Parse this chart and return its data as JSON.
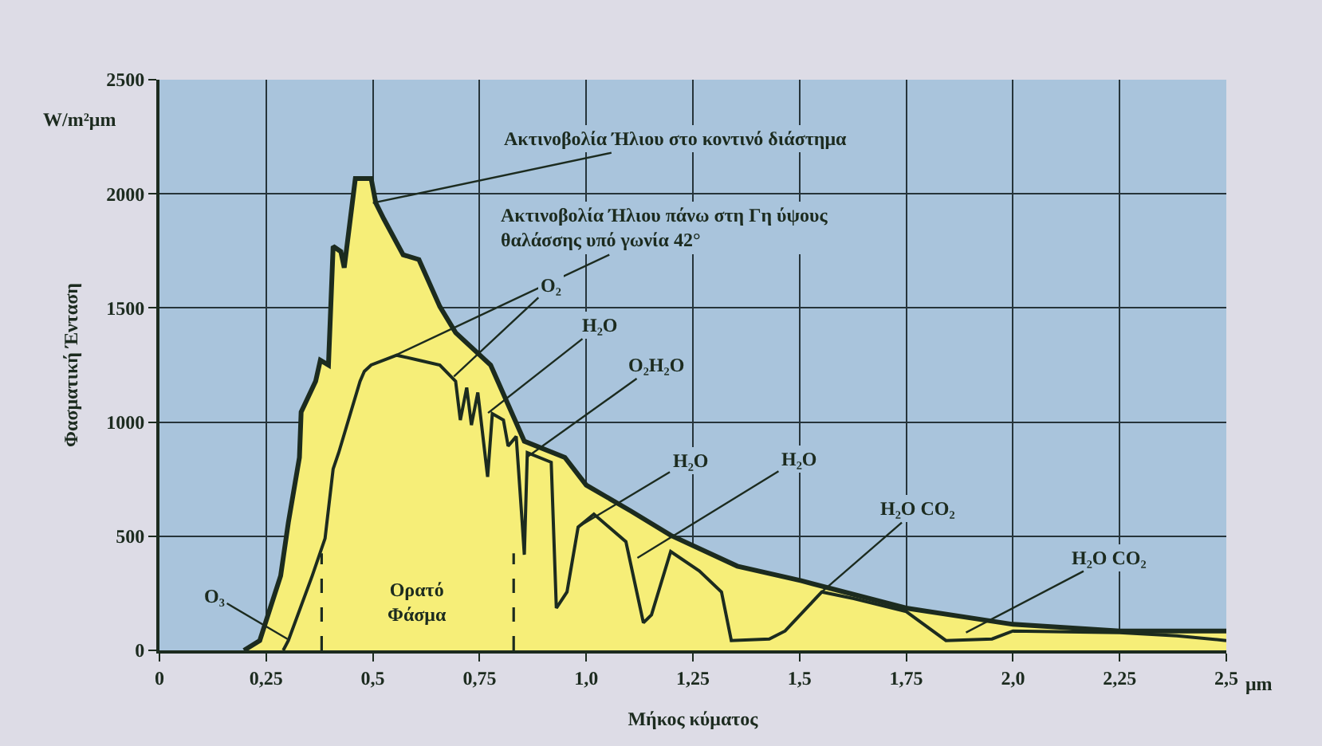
{
  "chart_data": {
    "type": "area",
    "xlabel": "Μήκος κύματος",
    "ylabel": "Φασματική Ένταση",
    "xlim": [
      0,
      2.5
    ],
    "ylim": [
      0,
      2500
    ],
    "xticks": [
      0,
      {
        "value": 0.25,
        "label": "0,25"
      },
      {
        "value": 0.5,
        "label": "0,5"
      },
      {
        "value": 0.75,
        "label": "0,75"
      },
      {
        "value": 1,
        "label": "1,0"
      },
      {
        "value": 1.25,
        "label": "1,25"
      },
      {
        "value": 1.5,
        "label": "1,5"
      },
      {
        "value": 1.75,
        "label": "1,75"
      },
      {
        "value": 2,
        "label": "2,0"
      },
      {
        "value": 2.25,
        "label": "2,25"
      },
      {
        "value": 2.5,
        "label": "2,5"
      }
    ],
    "yticks": [
      0,
      500,
      1000,
      1500,
      2000,
      2500
    ],
    "grid": true,
    "series": [
      {
        "color": "#f6ee78",
        "x": [
          0.198,
          0.235,
          0.284,
          0.302,
          0.328,
          0.332,
          0.366,
          0.377,
          0.396,
          0.407,
          0.425,
          0.433,
          0.459,
          0.496,
          0.507,
          0.526,
          0.571,
          0.608,
          0.657,
          0.694,
          0.776,
          0.855,
          0.95,
          1.0,
          1.104,
          1.198,
          1.354,
          1.504,
          1.75,
          2.0,
          2.25,
          2.5
        ],
        "values": [
          0,
          43,
          327,
          560,
          845,
          1044,
          1179,
          1271,
          1250,
          1770,
          1747,
          1676,
          2067,
          2067,
          1960,
          1889,
          1733,
          1712,
          1506,
          1392,
          1250,
          916,
          845,
          724,
          611,
          504,
          369,
          305,
          185,
          114,
          85,
          85
        ]
      },
      {
        "type": "line",
        "color": "#1c2b1f",
        "x": [
          0.29,
          0.302,
          0.358,
          0.388,
          0.407,
          0.42,
          0.47,
          0.48,
          0.496,
          0.556,
          0.608,
          0.657,
          0.683,
          0.694,
          0.705,
          0.72,
          0.731,
          0.746,
          0.769,
          0.78,
          0.806,
          0.817,
          0.836,
          0.85,
          0.855,
          0.862,
          0.918,
          0.93,
          0.955,
          0.981,
          1.018,
          1.093,
          1.134,
          1.153,
          1.198,
          1.265,
          1.317,
          1.34,
          1.429,
          1.466,
          1.552,
          1.627,
          1.75,
          1.843,
          1.951,
          2.0,
          2.25,
          2.384,
          2.5
        ],
        "values": [
          0,
          43,
          327,
          490,
          795,
          866,
          1179,
          1222,
          1250,
          1293,
          1271,
          1250,
          1200,
          1179,
          1009,
          1151,
          987,
          1130,
          760,
          1037,
          1009,
          895,
          937,
          560,
          419,
          866,
          824,
          185,
          256,
          540,
          597,
          476,
          121,
          156,
          433,
          348,
          256,
          43,
          50,
          85,
          256,
          227,
          170,
          43,
          50,
          85,
          78,
          64,
          43
        ]
      }
    ],
    "ref_lines": [
      {
        "axis": "x",
        "value": 0.38,
        "label": null,
        "line_style": "dashed"
      },
      {
        "axis": "x",
        "value": 0.83,
        "label": null,
        "line_style": "dashed"
      }
    ],
    "annotations": [
      {
        "text": "Ακτινοβολία Ήλιου στο κοντινό διάστημα",
        "x": 0.5,
        "y": 1960
      },
      {
        "text": "Ακτινοβολία Ήλιου πάνω στη Γη ύψους\nθαλάσσης υπό γωνία 42°",
        "x": 0.55,
        "y": 1290
      },
      {
        "text": "O₂",
        "x": 0.69,
        "y": 1200
      },
      {
        "text": "H₂O",
        "x": 0.77,
        "y": 1040
      },
      {
        "text": "O₂H₂O",
        "x": 0.86,
        "y": 845
      },
      {
        "text": "H₂O",
        "x": 0.981,
        "y": 540
      },
      {
        "text": "H₂O",
        "x": 1.12,
        "y": 405
      },
      {
        "text": "H₂O CO₂",
        "x": 1.552,
        "y": 256
      },
      {
        "text": "H₂O CO₂",
        "x": 1.89,
        "y": 78
      },
      {
        "text": "O₃",
        "x": 0.3,
        "y": 50
      },
      "W/m²μm",
      "μm",
      "Ορατό\nΦάσμα"
    ]
  }
}
